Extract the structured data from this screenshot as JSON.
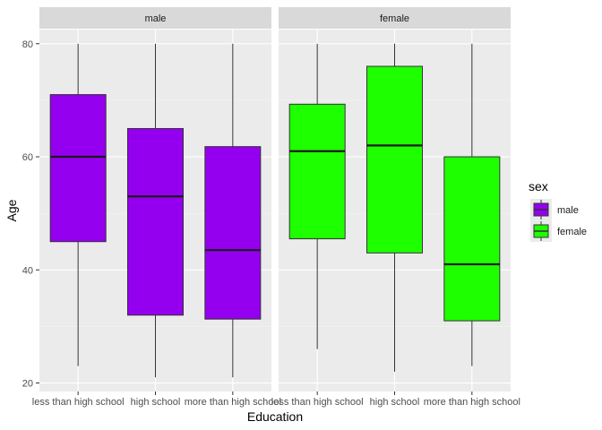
{
  "chart_data": {
    "type": "boxplot",
    "facets": [
      "male",
      "female"
    ],
    "categories": [
      "less than high school",
      "high school",
      "more than high school"
    ],
    "xlabel": "Education",
    "ylabel": "Age",
    "ylim": [
      18.5,
      82.5
    ],
    "yticks": [
      20,
      40,
      60,
      80
    ],
    "grid": true,
    "legend": {
      "title": "sex",
      "position": "right",
      "entries": [
        {
          "label": "male",
          "color": "#9400ef"
        },
        {
          "label": "female",
          "color": "#1eff00"
        }
      ]
    },
    "panels": [
      {
        "facet": "male",
        "color": "#9400ef",
        "boxes": [
          {
            "category": "less than high school",
            "min": 23,
            "q1": 45,
            "median": 60,
            "q3": 71,
            "max": 80
          },
          {
            "category": "high school",
            "min": 21,
            "q1": 32,
            "median": 53,
            "q3": 65,
            "max": 80
          },
          {
            "category": "more than high school",
            "min": 21,
            "q1": 31.3,
            "median": 43.5,
            "q3": 61.8,
            "max": 80
          }
        ]
      },
      {
        "facet": "female",
        "color": "#1eff00",
        "boxes": [
          {
            "category": "less than high school",
            "min": 26,
            "q1": 45.5,
            "median": 61,
            "q3": 69.3,
            "max": 80
          },
          {
            "category": "high school",
            "min": 22,
            "q1": 43,
            "median": 62,
            "q3": 76,
            "max": 80
          },
          {
            "category": "more than high school",
            "min": 23,
            "q1": 31,
            "median": 41,
            "q3": 60,
            "max": 80
          }
        ]
      }
    ]
  }
}
